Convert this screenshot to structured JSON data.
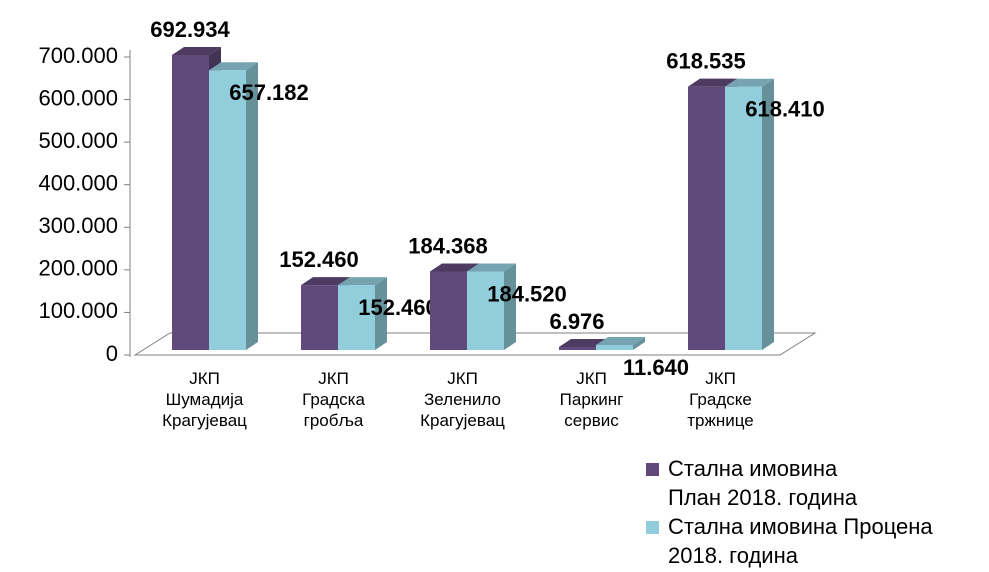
{
  "chart_data": {
    "type": "bar3d",
    "categories": [
      "ЈКП\nШумадија\nКрагујевац",
      "ЈКП\nГрадска\nгробља",
      "ЈКП\nЗеленило\nКрагујевац",
      "ЈКП\nПаркинг\nсервис",
      "ЈКП\nГрадске\nтржнице"
    ],
    "series": [
      {
        "name": "Стална имовина\nПлан 2018. година",
        "color": "#604a7b",
        "values": [
          692934,
          152460,
          184368,
          6976,
          618535
        ],
        "value_labels": [
          "692.934",
          "152.460",
          "184.368",
          "6.976",
          "618.535"
        ]
      },
      {
        "name": "Стална имовина Процена\n2018. година",
        "color": "#92cddc",
        "values": [
          657182,
          152460,
          184520,
          11640,
          618410
        ],
        "value_labels": [
          "657.182",
          "152.460",
          "184.520",
          "11.640",
          "618.410"
        ]
      }
    ],
    "ylim": [
      0,
      700000
    ],
    "yticks": [
      0,
      {
        "value": 100000,
        "label": "100.000"
      },
      {
        "value": 200000,
        "label": "200.000"
      },
      {
        "value": 300000,
        "label": "300.000"
      },
      {
        "value": 400000,
        "label": "400.000"
      },
      {
        "value": 500000,
        "label": "500.000"
      },
      {
        "value": 600000,
        "label": "600.000"
      },
      {
        "value": 700000,
        "label": "700.000"
      }
    ],
    "legend": "bottom-right"
  }
}
